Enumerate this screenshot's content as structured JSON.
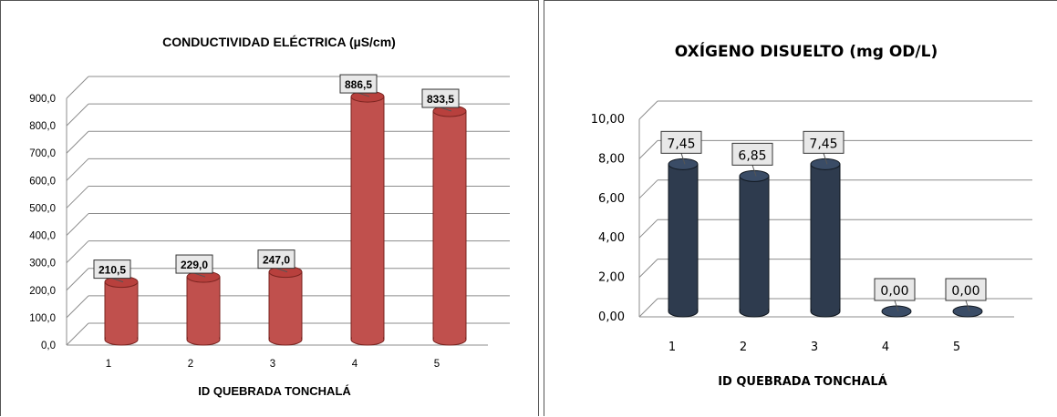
{
  "chart_data": [
    {
      "type": "bar",
      "title": "CONDUCTIVIDAD ELÉCTRICA (µS/cm)",
      "xlabel": "ID QUEBRADA TONCHALÁ",
      "ylabel": "",
      "categories": [
        "1",
        "2",
        "3",
        "4",
        "5"
      ],
      "values": [
        210.5,
        229.0,
        247.0,
        886.5,
        833.5
      ],
      "value_labels": [
        "210,5",
        "229,0",
        "247,0",
        "886,5",
        "833,5"
      ],
      "ylim": [
        0,
        900
      ],
      "yticks": [
        0,
        100,
        200,
        300,
        400,
        500,
        600,
        700,
        800,
        900
      ],
      "ytick_labels": [
        "0,0",
        "100,0",
        "200,0",
        "300,0",
        "400,0",
        "500,0",
        "600,0",
        "700,0",
        "800,0",
        "900,0"
      ],
      "grid": true,
      "bar_style": "3d-cylinder",
      "bar_color": "#c0504d"
    },
    {
      "type": "bar",
      "title": "OXÍGENO DISUELTO (mg OD/L)",
      "xlabel": "ID QUEBRADA TONCHALÁ",
      "ylabel": "",
      "categories": [
        "1",
        "2",
        "3",
        "4",
        "5"
      ],
      "values": [
        7.45,
        6.85,
        7.45,
        0.0,
        0.0
      ],
      "value_labels": [
        "7,45",
        "6,85",
        "7,45",
        "0,00",
        "0,00"
      ],
      "ylim": [
        0,
        10
      ],
      "yticks": [
        0,
        2,
        4,
        6,
        8,
        10
      ],
      "ytick_labels": [
        "0,00",
        "2,00",
        "4,00",
        "6,00",
        "8,00",
        "10,00"
      ],
      "grid": true,
      "bar_style": "3d-cylinder",
      "bar_color": "#2e3b4e"
    }
  ]
}
